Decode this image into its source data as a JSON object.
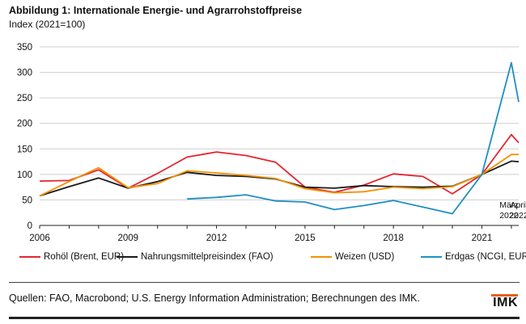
{
  "title": "Abbildung 1: Internationale Energie- und Agrarrohstoffpreise",
  "subtitle": "Index (2021=100)",
  "source": "Quellen: FAO, Macrobond; U.S. Energy Information Administration; Berechnungen des IMK.",
  "logo": "IMK",
  "colors": {
    "accent": "#e8601c"
  },
  "chart_data": {
    "type": "line",
    "ylim": [
      0,
      350
    ],
    "yticks": [
      0,
      50,
      100,
      150,
      200,
      250,
      300,
      350
    ],
    "xlim": [
      2006,
      2022.25
    ],
    "xticks": [
      2006,
      2009,
      2012,
      2015,
      2018,
      2021
    ],
    "xtick_labels": [
      "2006",
      "2009",
      "2012",
      "2015",
      "2018",
      "2021"
    ],
    "annotations": [
      {
        "x": 2022,
        "line1": "März",
        "line2": "2022"
      },
      {
        "x": 2022.25,
        "line1": "April",
        "line2": "2022"
      }
    ],
    "grid": true,
    "legend_position": "bottom",
    "series": [
      {
        "name": "Rohöl (Brent, EUR)",
        "color": "#e3262f",
        "x": [
          2006,
          2007,
          2008,
          2009,
          2010,
          2011,
          2012,
          2013,
          2014,
          2015,
          2016,
          2017,
          2018,
          2019,
          2020,
          2021,
          2022,
          2022.25
        ],
        "y": [
          87,
          88,
          109,
          73,
          102,
          134,
          144,
          137,
          124,
          75,
          65,
          79,
          101,
          96,
          62,
          100,
          178,
          162
        ]
      },
      {
        "name": "Nahrungsmittelpreisindex (FAO)",
        "color": "#1a1a1a",
        "x": [
          2006,
          2007,
          2008,
          2009,
          2010,
          2011,
          2012,
          2013,
          2014,
          2015,
          2016,
          2017,
          2018,
          2019,
          2020,
          2021,
          2022,
          2022.25
        ],
        "y": [
          58,
          76,
          93,
          73,
          86,
          104,
          98,
          96,
          91,
          75,
          73,
          78,
          76,
          75,
          77,
          100,
          126,
          125
        ]
      },
      {
        "name": "Weizen (USD)",
        "color": "#f39200",
        "x": [
          2006,
          2007,
          2008,
          2009,
          2010,
          2011,
          2012,
          2013,
          2014,
          2015,
          2016,
          2017,
          2018,
          2019,
          2020,
          2021,
          2022,
          2022.25
        ],
        "y": [
          58,
          86,
          113,
          74,
          82,
          107,
          103,
          98,
          92,
          72,
          64,
          66,
          75,
          72,
          76,
          100,
          139,
          139
        ]
      },
      {
        "name": "Erdgas (NCGI, EUR)",
        "color": "#1f8fc4",
        "x": [
          2011,
          2012,
          2013,
          2014,
          2015,
          2016,
          2017,
          2018,
          2019,
          2020,
          2021,
          2022,
          2022.25
        ],
        "y": [
          52,
          55,
          60,
          48,
          46,
          31,
          39,
          49,
          36,
          23,
          100,
          319,
          242
        ]
      }
    ]
  }
}
